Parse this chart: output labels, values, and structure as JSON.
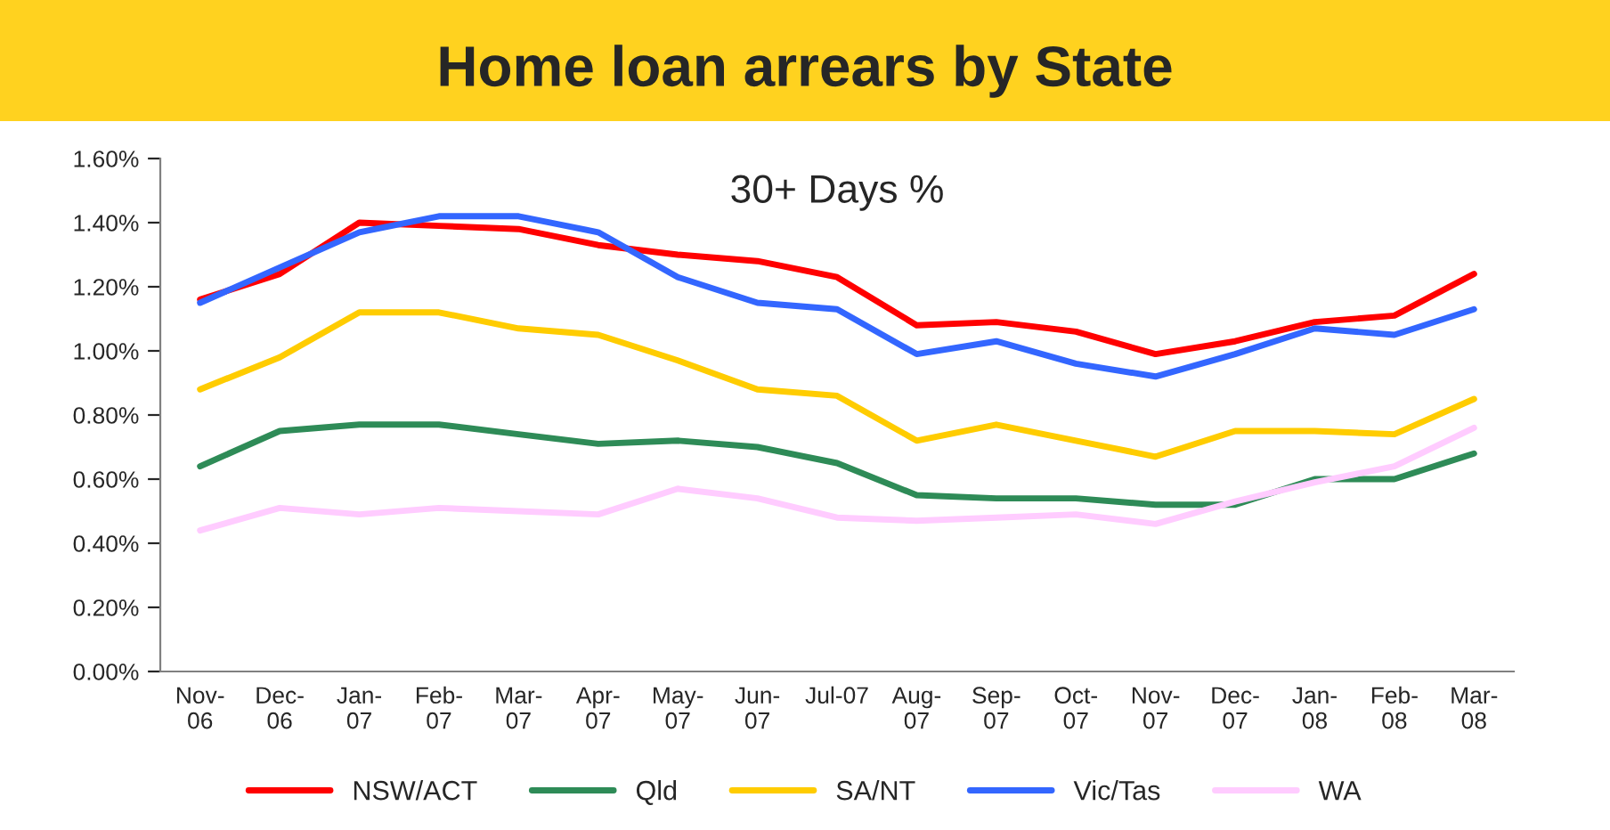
{
  "chart_data": {
    "type": "line",
    "title": "Home loan arrears by State",
    "subtitle": "30+ Days %",
    "categories": [
      "Nov-\n06",
      "Dec-\n06",
      "Jan-\n07",
      "Feb-\n07",
      "Mar-\n07",
      "Apr-\n07",
      "May-\n07",
      "Jun-\n07",
      "Jul-07",
      "Aug-\n07",
      "Sep-\n07",
      "Oct-\n07",
      "Nov-\n07",
      "Dec-\n07",
      "Jan-\n08",
      "Feb-\n08",
      "Mar-\n08"
    ],
    "series": [
      {
        "name": "NSW/ACT",
        "color": "#ff0000",
        "values": [
          1.16,
          1.24,
          1.4,
          1.39,
          1.38,
          1.33,
          1.3,
          1.28,
          1.23,
          1.08,
          1.09,
          1.06,
          0.99,
          1.03,
          1.09,
          1.11,
          1.24
        ]
      },
      {
        "name": "Qld",
        "color": "#2e8b57",
        "values": [
          0.64,
          0.75,
          0.77,
          0.77,
          0.74,
          0.71,
          0.72,
          0.7,
          0.65,
          0.55,
          0.54,
          0.54,
          0.52,
          0.52,
          0.6,
          0.6,
          0.68
        ]
      },
      {
        "name": "SA/NT",
        "color": "#ffcc00",
        "values": [
          0.88,
          0.98,
          1.12,
          1.12,
          1.07,
          1.05,
          0.97,
          0.88,
          0.86,
          0.72,
          0.77,
          0.72,
          0.67,
          0.75,
          0.75,
          0.74,
          0.85
        ]
      },
      {
        "name": "Vic/Tas",
        "color": "#3366ff",
        "values": [
          1.15,
          1.26,
          1.37,
          1.42,
          1.42,
          1.37,
          1.23,
          1.15,
          1.13,
          0.99,
          1.03,
          0.96,
          0.92,
          0.99,
          1.07,
          1.05,
          1.13
        ]
      },
      {
        "name": "WA",
        "color": "#ffccff",
        "values": [
          0.44,
          0.51,
          0.49,
          0.51,
          0.5,
          0.49,
          0.57,
          0.54,
          0.48,
          0.47,
          0.48,
          0.49,
          0.46,
          0.53,
          0.59,
          0.64,
          0.76
        ]
      }
    ],
    "ylim": [
      0,
      1.6
    ],
    "yticks": [
      {
        "value": 0,
        "label": "0.00%"
      },
      {
        "value": 0.2,
        "label": "0.20%"
      },
      {
        "value": 0.4,
        "label": "0.40%"
      },
      {
        "value": 0.6,
        "label": "0.60%"
      },
      {
        "value": 0.8,
        "label": "0.80%"
      },
      {
        "value": 1.0,
        "label": "1.00%"
      },
      {
        "value": 1.2,
        "label": "1.20%"
      },
      {
        "value": 1.4,
        "label": "1.40%"
      },
      {
        "value": 1.6,
        "label": "1.60%"
      }
    ],
    "grid": false,
    "legend": "bottom",
    "marker": "none",
    "line_style": "solid"
  }
}
